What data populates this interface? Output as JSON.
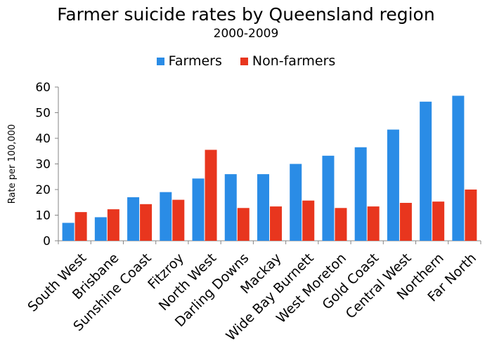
{
  "chart_data": {
    "type": "bar",
    "title": "Farmer suicide rates by Queensland region",
    "subtitle": "2000-2009",
    "xlabel": "",
    "ylabel": "Rate per 100,000",
    "ylim": [
      0,
      60
    ],
    "yticks": [
      0,
      10,
      20,
      30,
      40,
      50,
      60
    ],
    "grid": false,
    "legend_position": "top",
    "categories": [
      "South West",
      "Brisbane",
      "Sunshine Coast",
      "Fitzroy",
      "North West",
      "Darling Downs",
      "Mackay",
      "Wide Bay Burnett",
      "West Moreton",
      "Gold Coast",
      "Central West",
      "Northern",
      "Far North"
    ],
    "series": [
      {
        "name": "Farmers",
        "color": "#2A8CE6",
        "values": [
          7,
          9.2,
          17,
          19,
          24.3,
          26,
          26,
          30,
          33.2,
          36.5,
          43.4,
          54.3,
          56.6
        ]
      },
      {
        "name": "Non-farmers",
        "color": "#E8361E",
        "values": [
          11.2,
          12.3,
          14.3,
          16,
          35.5,
          12.8,
          13.4,
          15.7,
          12.8,
          13.4,
          14.8,
          15.3,
          20
        ]
      }
    ]
  }
}
